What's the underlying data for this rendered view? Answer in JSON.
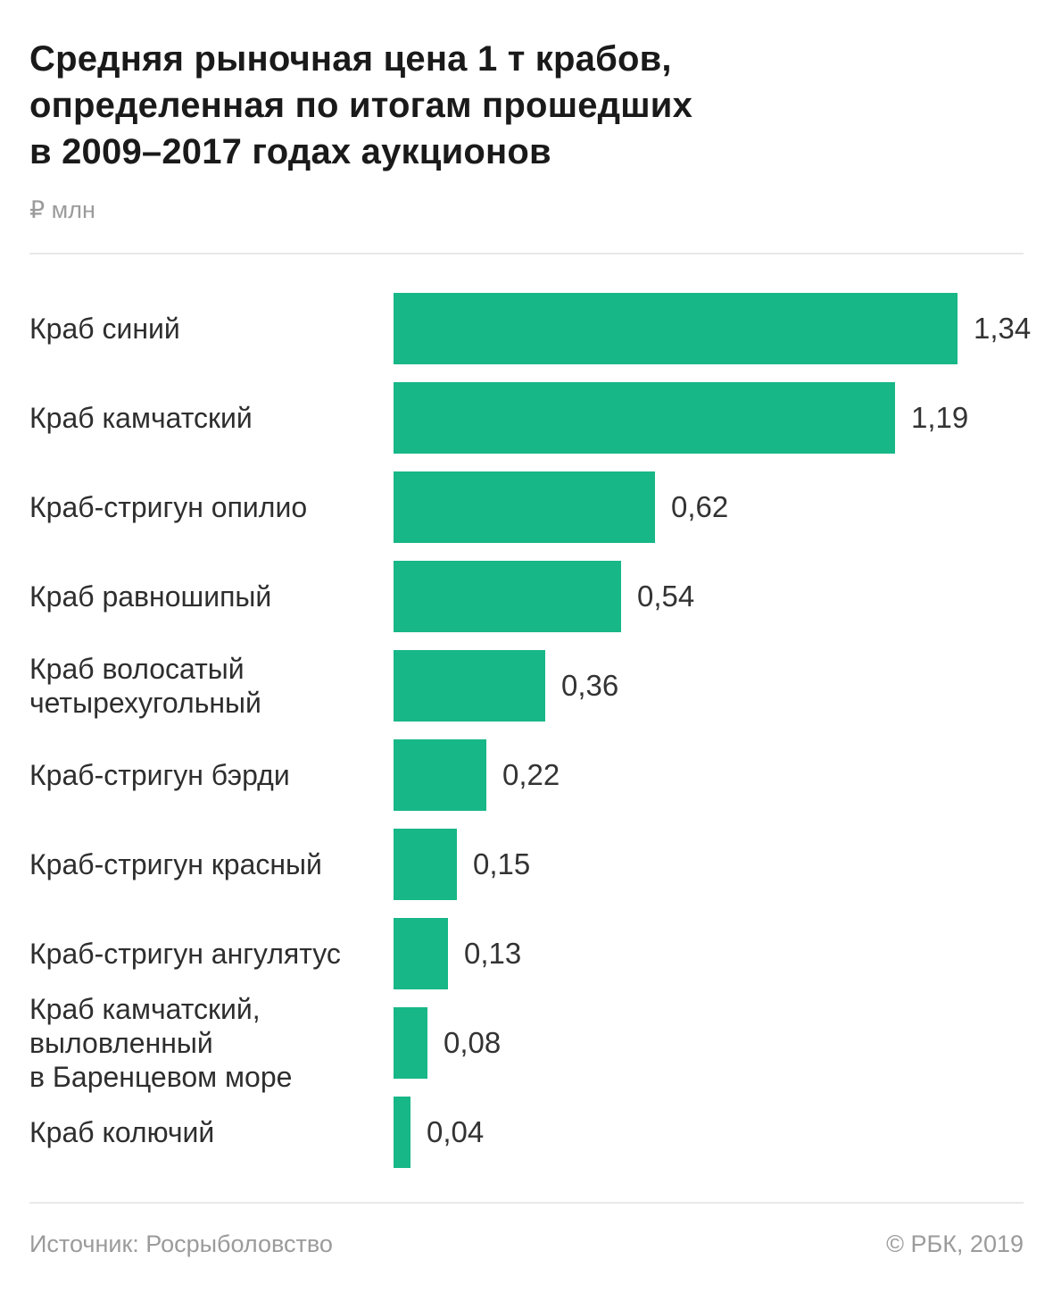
{
  "header": {
    "title_lines": [
      "Средняя рыночная цена 1 т крабов,",
      "определенная по итогам прошедших",
      "в 2009–2017 годах аукционов"
    ],
    "unit_label": "₽ млн"
  },
  "chart_data": {
    "type": "bar",
    "orientation": "horizontal",
    "title": "Средняя рыночная цена 1 т крабов, определенная по итогам прошедших в 2009–2017 годах аукционов",
    "unit": "₽ млн",
    "xlim": [
      0,
      1.4
    ],
    "grid": false,
    "legend": false,
    "bar_color": "#17b787",
    "categories": [
      "Краб синий",
      "Краб камчатский",
      "Краб-стригун опилио",
      "Краб равношипый",
      "Краб волосатый четырехугольный",
      "Краб-стригун бэрди",
      "Краб-стригун красный",
      "Краб-стригун ангулятус",
      "Краб камчатский, выловленный в Баренцевом море",
      "Краб колючий"
    ],
    "category_lines": [
      [
        "Краб синий"
      ],
      [
        "Краб камчатский"
      ],
      [
        "Краб-стригун опилио"
      ],
      [
        "Краб равношипый"
      ],
      [
        "Краб волосатый",
        "четырехугольный"
      ],
      [
        "Краб-стригун бэрди"
      ],
      [
        "Краб-стригун красный"
      ],
      [
        "Краб-стригун ангулятус"
      ],
      [
        "Краб камчатский,",
        "выловленный",
        "в Баренцевом море"
      ],
      [
        "Краб колючий"
      ]
    ],
    "values": [
      1.34,
      1.19,
      0.62,
      0.54,
      0.36,
      0.22,
      0.15,
      0.13,
      0.08,
      0.04
    ],
    "value_labels": [
      "1,34",
      "1,19",
      "0,62",
      "0,54",
      "0,36",
      "0,22",
      "0,15",
      "0,13",
      "0,08",
      "0,04"
    ]
  },
  "footer": {
    "source": "Источник: Росрыболовство",
    "copyright": "© РБК, 2019"
  }
}
